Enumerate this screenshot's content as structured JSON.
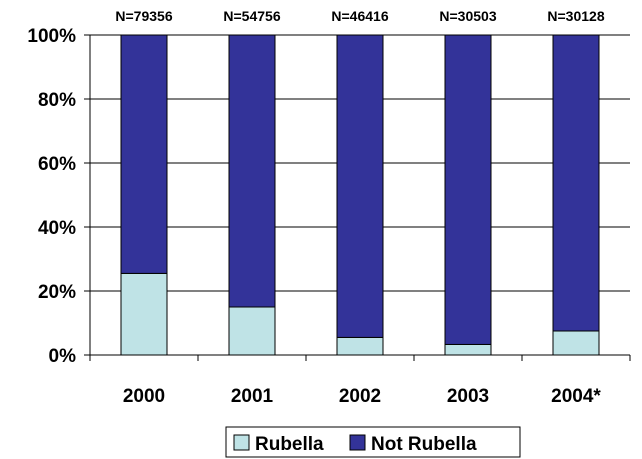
{
  "chart_data": {
    "type": "bar",
    "stacked": true,
    "percent": true,
    "categories": [
      "2000",
      "2001",
      "2002",
      "2003",
      "2004*"
    ],
    "sample_sizes": [
      "N=79356",
      "N=54756",
      "N=46416",
      "N=30503",
      "N=30128"
    ],
    "series": [
      {
        "name": "Rubella",
        "values": [
          25.5,
          15,
          5.5,
          3.3,
          7.5
        ],
        "color": "#bfe3e6"
      },
      {
        "name": "Not Rubella",
        "values": [
          74.5,
          85,
          94.5,
          96.7,
          92.5
        ],
        "color": "#333399"
      }
    ],
    "ylim": [
      0,
      100
    ],
    "yticks": [
      "0%",
      "20%",
      "40%",
      "60%",
      "80%",
      "100%"
    ],
    "grid": true,
    "legend_position": "bottom"
  }
}
